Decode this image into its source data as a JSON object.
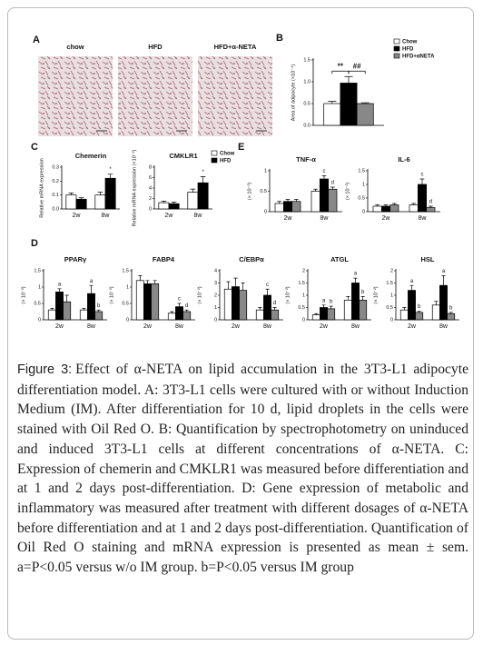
{
  "figure": {
    "panel_labels": [
      "A",
      "B",
      "C",
      "E",
      "D"
    ],
    "images": [
      "chow",
      "HFD",
      "HFD+α-NETA"
    ],
    "charts": [
      {
        "type": "bar",
        "ylabel": "Area of adipocyte (×10⁻⁴)",
        "categories": [
          null
        ],
        "series": [
          {
            "name": "Chow",
            "color": "#ffffff",
            "values": [
              0.5
            ],
            "errors": [
              0.05
            ]
          },
          {
            "name": "HFD",
            "color": "#000000",
            "values": [
              0.97
            ],
            "errors": [
              0.15
            ]
          },
          {
            "name": "HFD+αNETA",
            "color": "#888888",
            "values": [
              0.5
            ],
            "errors": [
              0.02
            ]
          }
        ],
        "ylim": [
          0,
          1.5
        ],
        "yticks": [
          {
            "value": 0,
            "label": "0.0"
          },
          0.5,
          {
            "value": 1,
            "label": "1.0"
          },
          1.5
        ],
        "significance": [
          "**",
          "##"
        ],
        "legend": true
      },
      {
        "type": "bar",
        "title": "Chemerin",
        "ylabel": "Relative mRNA expression",
        "categories": [
          "2w",
          "8w"
        ],
        "series": [
          {
            "color": "#ffffff",
            "values": [
              0.1,
              0.1
            ],
            "errors": [
              0.015,
              0.02
            ]
          },
          {
            "color": "#000000",
            "values": [
              0.07,
              0.22
            ],
            "errors": [
              0.01,
              0.03
            ],
            "labels": [
              null,
              "*"
            ]
          }
        ],
        "ylim": [
          0,
          0.3
        ],
        "yticks": [
          {
            "value": 0,
            "label": "0.0"
          },
          0.1,
          0.2,
          0.3
        ]
      },
      {
        "type": "bar",
        "title": "CMKLR1",
        "ylabel": "Relative mRNA expression (×10⁻²)",
        "categories": [
          "2w",
          "8w"
        ],
        "series": [
          {
            "name": "Chow",
            "color": "#ffffff",
            "values": [
              1.2,
              3.2
            ],
            "errors": [
              0.3,
              0.6
            ]
          },
          {
            "name": "HFD",
            "color": "#000000",
            "values": [
              1.0,
              5.0
            ],
            "errors": [
              0.3,
              1.2
            ],
            "labels": [
              null,
              "*"
            ]
          }
        ],
        "ylim": [
          0,
          8
        ],
        "yticks": [
          0,
          2,
          4,
          6,
          8
        ],
        "legend": true
      },
      {
        "type": "bar",
        "title": "TNF-α",
        "ylabel": "(× 10⁻²)",
        "categories": [
          "2w",
          "8w"
        ],
        "series": [
          {
            "color": "#ffffff",
            "values": [
              0.2,
              0.5
            ],
            "errors": [
              0.05,
              0.05
            ]
          },
          {
            "color": "#000000",
            "values": [
              0.25,
              0.8
            ],
            "errors": [
              0.05,
              0.08
            ],
            "labels": [
              null,
              "c"
            ]
          },
          {
            "color": "#888888",
            "values": [
              0.25,
              0.55
            ],
            "errors": [
              0.05,
              0.05
            ],
            "labels": [
              null,
              "d"
            ]
          }
        ],
        "ylim": [
          0,
          1
        ],
        "yticks": [
          0,
          0.5,
          1
        ]
      },
      {
        "type": "bar",
        "title": "IL-6",
        "ylabel": "(× 10⁻²)",
        "categories": [
          "2w",
          "8w"
        ],
        "series": [
          {
            "color": "#ffffff",
            "values": [
              0.2,
              0.25
            ],
            "errors": [
              0.05,
              0.05
            ]
          },
          {
            "color": "#000000",
            "values": [
              0.2,
              1.0
            ],
            "errors": [
              0.05,
              0.2
            ],
            "labels": [
              null,
              "c"
            ]
          },
          {
            "color": "#888888",
            "values": [
              0.25,
              0.15
            ],
            "errors": [
              0.05,
              0.05
            ],
            "labels": [
              null,
              "d"
            ]
          }
        ],
        "ylim": [
          0,
          1.5
        ],
        "yticks": [
          0,
          0.5,
          1,
          1.5
        ]
      },
      {
        "type": "bar",
        "title": "PPARγ",
        "ylabel": "(× 10⁻²)",
        "categories": [
          "2w",
          "8w"
        ],
        "series": [
          {
            "color": "#ffffff",
            "values": [
              0.3,
              0.3
            ],
            "errors": [
              0.05,
              0.05
            ]
          },
          {
            "color": "#000000",
            "values": [
              0.85,
              0.8
            ],
            "errors": [
              0.1,
              0.25
            ],
            "labels": [
              "a",
              "a"
            ]
          },
          {
            "color": "#888888",
            "values": [
              0.55,
              0.25
            ],
            "errors": [
              0.2,
              0.05
            ],
            "labels": [
              null,
              "b"
            ]
          }
        ],
        "ylim": [
          0,
          1.5
        ],
        "yticks": [
          0,
          0.5,
          1,
          1.5
        ]
      },
      {
        "type": "bar",
        "title": "FABP4",
        "ylabel": "(× 10⁻²)",
        "categories": [
          "2w",
          "8w"
        ],
        "series": [
          {
            "color": "#ffffff",
            "values": [
              1.2,
              0.2
            ],
            "errors": [
              0.15,
              0.05
            ]
          },
          {
            "color": "#000000",
            "values": [
              1.1,
              0.4
            ],
            "errors": [
              0.1,
              0.1
            ],
            "labels": [
              null,
              "c"
            ]
          },
          {
            "color": "#888888",
            "values": [
              1.1,
              0.25
            ],
            "errors": [
              0.1,
              0.05
            ],
            "labels": [
              null,
              "d"
            ]
          }
        ],
        "ylim": [
          0,
          1.5
        ],
        "yticks": [
          0,
          0.5,
          1,
          1.5
        ]
      },
      {
        "type": "bar",
        "title": "C/EBPα",
        "ylabel": "(× 10⁻²)",
        "categories": [
          "2w",
          "8w"
        ],
        "series": [
          {
            "color": "#ffffff",
            "values": [
              2.5,
              0.8
            ],
            "errors": [
              0.6,
              0.2
            ]
          },
          {
            "color": "#000000",
            "values": [
              2.7,
              2.0
            ],
            "errors": [
              0.7,
              0.5
            ],
            "labels": [
              null,
              "c"
            ]
          },
          {
            "color": "#888888",
            "values": [
              2.4,
              0.8
            ],
            "errors": [
              0.6,
              0.2
            ],
            "labels": [
              null,
              "d"
            ]
          }
        ],
        "ylim": [
          0,
          4
        ],
        "yticks": [
          0,
          1,
          2,
          3,
          4
        ]
      },
      {
        "type": "bar",
        "title": "ATGL",
        "ylabel": "(× 10⁻²)",
        "categories": [
          "2w",
          "8w"
        ],
        "series": [
          {
            "color": "#ffffff",
            "values": [
              0.2,
              0.8
            ],
            "errors": [
              0.05,
              0.15
            ]
          },
          {
            "color": "#000000",
            "values": [
              0.5,
              1.5
            ],
            "errors": [
              0.1,
              0.2
            ],
            "labels": [
              "a",
              "a"
            ]
          },
          {
            "color": "#888888",
            "values": [
              0.45,
              0.8
            ],
            "errors": [
              0.1,
              0.15
            ],
            "labels": [
              "b",
              "b"
            ]
          }
        ],
        "ylim": [
          0,
          2
        ],
        "yticks": [
          0,
          0.5,
          1,
          1.5,
          2
        ]
      },
      {
        "type": "bar",
        "title": "HSL",
        "ylabel": "(× 10⁻²)",
        "categories": [
          "2w",
          "8w"
        ],
        "series": [
          {
            "color": "#ffffff",
            "values": [
              0.4,
              0.6
            ],
            "errors": [
              0.1,
              0.15
            ]
          },
          {
            "color": "#000000",
            "values": [
              1.2,
              1.4
            ],
            "errors": [
              0.2,
              0.4
            ],
            "labels": [
              "a",
              "a"
            ]
          },
          {
            "color": "#888888",
            "values": [
              0.3,
              0.25
            ],
            "errors": [
              0.05,
              0.05
            ],
            "labels": [
              "b",
              "b"
            ]
          }
        ],
        "ylim": [
          0,
          2
        ],
        "yticks": [
          0,
          0.5,
          1,
          1.5,
          2
        ]
      }
    ]
  },
  "caption": {
    "label": "Figure 3:",
    "text": "Effect of α-NETA on lipid accumulation in the 3T3-L1 adipocyte differentiation model. A: 3T3-L1 cells were cultured with or without Induction Medium (IM). After differentiation for 10 d, lipid droplets in the cells were stained with Oil Red O. B: Quantification by spectrophotometry on uninduced and induced 3T3-L1 cells at different concentrations of α-NETA. C: Expression of chemerin and CMKLR1 was measured before differentiation and at 1 and 2 days post-differentiation. D: Gene expression of metabolic and inflammatory was measured after treatment with different dosages of α-NETA before differentiation and at 1 and 2 days post-differentiation. Quantification of Oil Red O staining and mRNA expression is presented as mean ± sem. a=P<0.05 versus w/o IM group. b=P<0.05 versus IM group"
  }
}
